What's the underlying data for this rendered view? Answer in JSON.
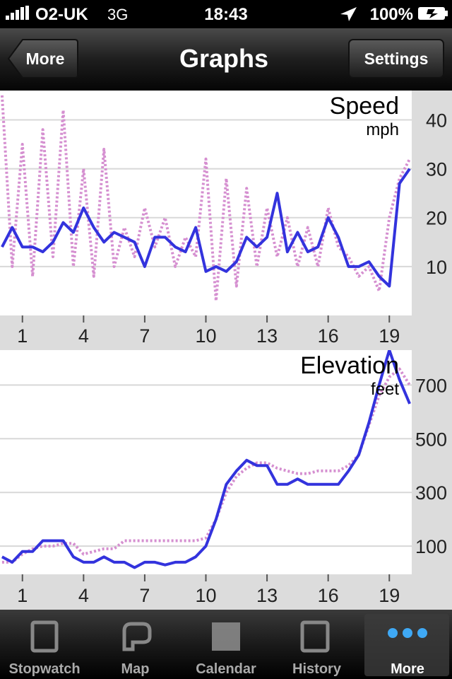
{
  "status_bar": {
    "carrier": "O2-UK",
    "network": "3G",
    "time": "18:43",
    "battery": "100%"
  },
  "nav": {
    "back": "More",
    "title": "Graphs",
    "action": "Settings"
  },
  "chart_data": [
    {
      "type": "line",
      "title": "Speed",
      "subtitle": "mph",
      "x": [
        0,
        0.5,
        1,
        1.5,
        2,
        2.5,
        3,
        3.5,
        4,
        4.5,
        5,
        5.5,
        6,
        6.5,
        7,
        7.5,
        8,
        8.5,
        9,
        9.5,
        10,
        10.5,
        11,
        11.5,
        12,
        12.5,
        13,
        13.5,
        14,
        14.5,
        15,
        15.5,
        16,
        16.5,
        17,
        17.5,
        18,
        18.5,
        19,
        19.5,
        20
      ],
      "series": [
        {
          "color": "#3333dd",
          "style": "solid",
          "values": [
            14,
            18,
            14,
            14,
            13,
            15,
            19,
            17,
            22,
            18,
            15,
            17,
            16,
            15,
            10,
            16,
            16,
            14,
            13,
            18,
            9,
            10,
            9,
            11,
            16,
            14,
            16,
            25,
            13,
            17,
            13,
            14,
            20,
            16,
            10,
            10,
            11,
            8,
            6,
            27,
            30
          ]
        },
        {
          "color": "#d58fd0",
          "style": "dotted",
          "values": [
            45,
            10,
            35,
            8,
            38,
            12,
            42,
            10,
            30,
            8,
            34,
            10,
            18,
            12,
            22,
            14,
            20,
            10,
            16,
            12,
            32,
            3,
            28,
            6,
            26,
            10,
            22,
            12,
            20,
            10,
            18,
            10,
            22,
            14,
            12,
            8,
            10,
            5,
            20,
            28,
            32
          ]
        }
      ],
      "xlim": [
        -0.1,
        20.1
      ],
      "ylim": [
        0,
        46
      ],
      "xticks": [
        1,
        4,
        7,
        10,
        13,
        16,
        19
      ],
      "yticks": [
        10,
        20,
        30,
        40
      ],
      "grid": true
    },
    {
      "type": "line",
      "title": "Elevation",
      "subtitle": "feet",
      "x": [
        0,
        0.5,
        1,
        1.5,
        2,
        2.5,
        3,
        3.5,
        4,
        4.5,
        5,
        5.5,
        6,
        6.5,
        7,
        7.5,
        8,
        8.5,
        9,
        9.5,
        10,
        10.5,
        11,
        11.5,
        12,
        12.5,
        13,
        13.5,
        14,
        14.5,
        15,
        15.5,
        16,
        16.5,
        17,
        17.5,
        18,
        18.5,
        19,
        19.5,
        20
      ],
      "series": [
        {
          "color": "#3333dd",
          "style": "solid",
          "values": [
            60,
            40,
            80,
            80,
            120,
            120,
            120,
            60,
            40,
            40,
            60,
            40,
            40,
            20,
            40,
            40,
            30,
            40,
            40,
            60,
            100,
            200,
            330,
            380,
            420,
            400,
            400,
            330,
            330,
            350,
            330,
            330,
            330,
            330,
            380,
            440,
            560,
            700,
            830,
            720,
            630
          ]
        },
        {
          "color": "#d58fd0",
          "style": "dotted",
          "values": [
            40,
            40,
            70,
            90,
            100,
            100,
            110,
            110,
            70,
            80,
            90,
            90,
            120,
            120,
            120,
            120,
            120,
            120,
            120,
            120,
            130,
            200,
            300,
            360,
            390,
            410,
            410,
            390,
            380,
            370,
            370,
            380,
            380,
            380,
            400,
            440,
            550,
            660,
            730,
            760,
            700
          ]
        }
      ],
      "xlim": [
        -0.1,
        20.1
      ],
      "ylim": [
        -5,
        830
      ],
      "xticks": [
        1,
        4,
        7,
        10,
        13,
        16,
        19
      ],
      "yticks": [
        100,
        300,
        500,
        700
      ],
      "grid": true
    }
  ],
  "tab_bar": {
    "tabs": [
      "Stopwatch",
      "Map",
      "Calendar",
      "History",
      "More"
    ],
    "selected": 4
  }
}
